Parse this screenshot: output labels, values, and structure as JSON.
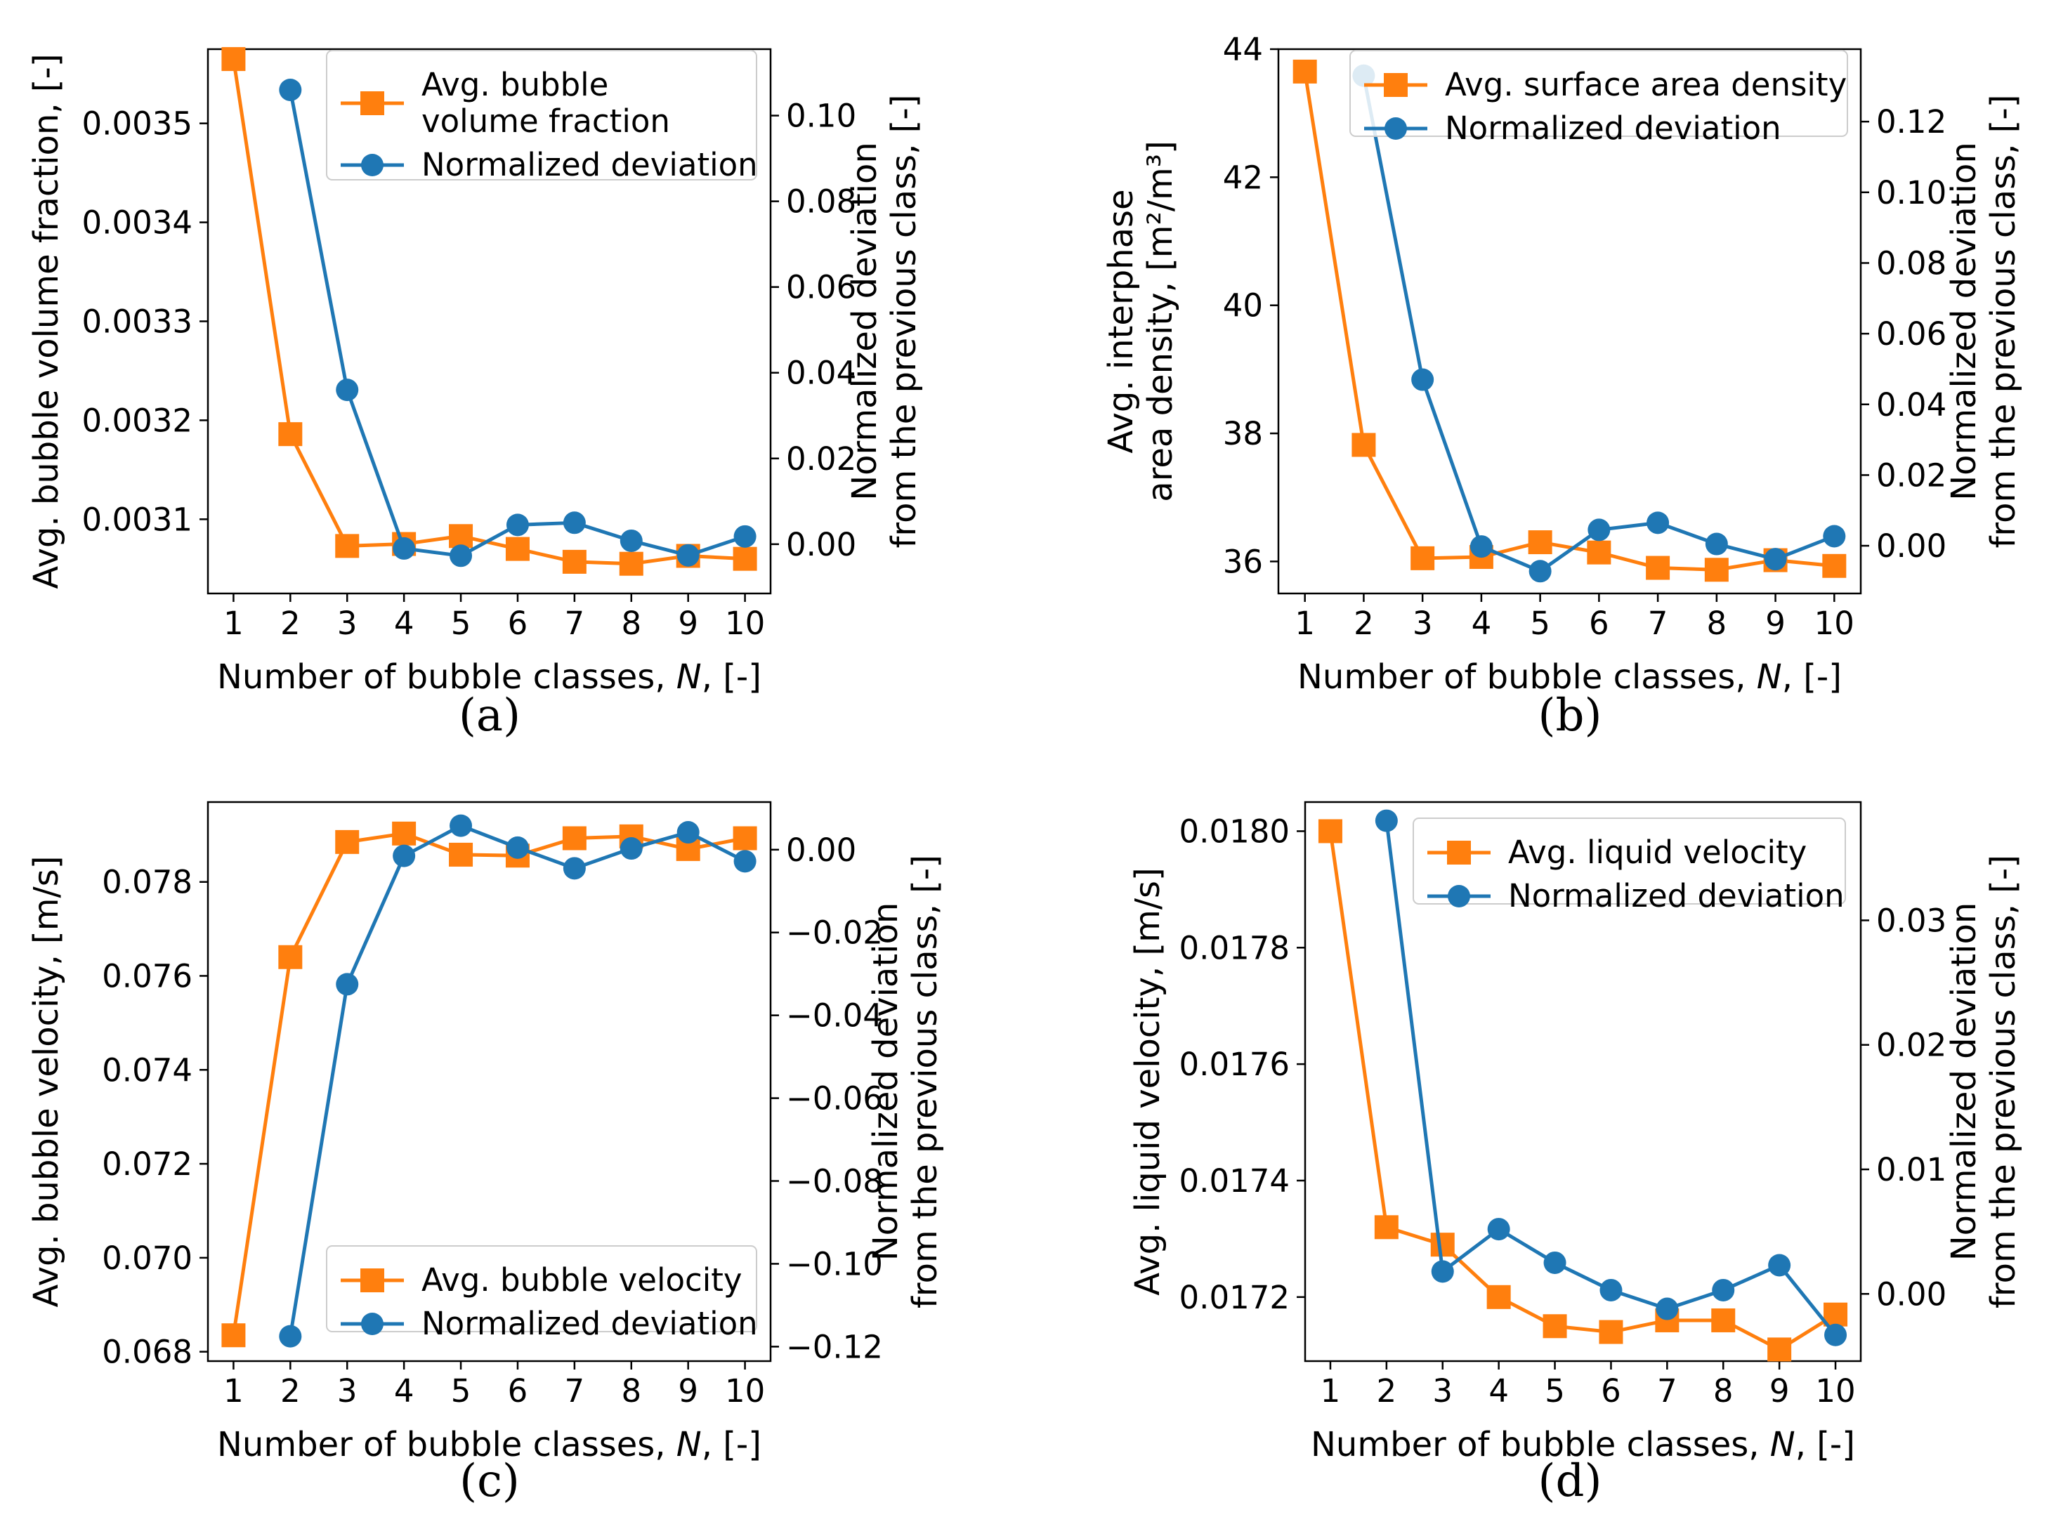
{
  "chart_data": [
    {
      "type": "line",
      "panel": "(a)",
      "categories": [
        "1",
        "2",
        "3",
        "4",
        "5",
        "6",
        "7",
        "8",
        "9",
        "10"
      ],
      "xlabel_pre": "Number of bubble classes, ",
      "xlabel_var": "N",
      "xlabel_post": ", [-]",
      "ylabel": [
        "Avg. bubble volume fraction, [-]"
      ],
      "y2label": [
        "Normalized deviation",
        "from the previous class, [-]"
      ],
      "ylim": [
        0.003025,
        0.003575
      ],
      "y2lim": [
        -0.0115,
        0.1155
      ],
      "yticks": [
        0.0031,
        0.0032,
        0.0033,
        0.0034,
        0.0035
      ],
      "ytick_labels": [
        "0.0031",
        "0.0032",
        "0.0033",
        "0.0034",
        "0.0035"
      ],
      "y2ticks": [
        0.0,
        0.02,
        0.04,
        0.06,
        0.08,
        0.1
      ],
      "y2tick_labels": [
        "0.00",
        "0.02",
        "0.04",
        "0.06",
        "0.08",
        "0.10"
      ],
      "legend_position": "top-right",
      "series": [
        {
          "name": "Avg. bubble\nvolume fraction",
          "axis": "left",
          "marker": "square",
          "color": "#ff7f0e",
          "x": [
            1,
            2,
            3,
            4,
            5,
            6,
            7,
            8,
            9,
            10
          ],
          "values": [
            0.003565,
            0.003186,
            0.003073,
            0.003075,
            0.003083,
            0.00307,
            0.003057,
            0.003055,
            0.003063,
            0.00306
          ]
        },
        {
          "name": "Normalized deviation",
          "axis": "right",
          "marker": "circle",
          "color": "#1f77b4",
          "x": [
            2,
            3,
            4,
            5,
            6,
            7,
            8,
            9,
            10
          ],
          "values": [
            0.106,
            0.036,
            -0.001,
            -0.0027,
            0.0045,
            0.005,
            0.0008,
            -0.0026,
            0.0018
          ]
        }
      ]
    },
    {
      "type": "line",
      "panel": "(b)",
      "categories": [
        "1",
        "2",
        "3",
        "4",
        "5",
        "6",
        "7",
        "8",
        "9",
        "10"
      ],
      "xlabel_pre": "Number of bubble classes, ",
      "xlabel_var": "N",
      "xlabel_post": ", [-]",
      "ylabel": [
        "Avg. interphase",
        "area density, [m²/m³]"
      ],
      "y2label": [
        "Normalized deviation",
        "from the previous class, [-]"
      ],
      "ylim": [
        35.5,
        44.0
      ],
      "y2lim": [
        -0.0135,
        0.1405
      ],
      "yticks": [
        36,
        38,
        40,
        42,
        44
      ],
      "ytick_labels": [
        "36",
        "38",
        "40",
        "42",
        "44"
      ],
      "y2ticks": [
        0.0,
        0.02,
        0.04,
        0.06,
        0.08,
        0.1,
        0.12
      ],
      "y2tick_labels": [
        "0.00",
        "0.02",
        "0.04",
        "0.06",
        "0.08",
        "0.10",
        "0.12"
      ],
      "legend_position": "top-right",
      "series": [
        {
          "name": "Avg. surface area density",
          "axis": "left",
          "marker": "square",
          "color": "#ff7f0e",
          "x": [
            1,
            2,
            3,
            4,
            5,
            6,
            7,
            8,
            9,
            10
          ],
          "values": [
            43.65,
            37.82,
            36.05,
            36.07,
            36.3,
            36.14,
            35.9,
            35.87,
            36.02,
            35.93
          ]
        },
        {
          "name": "Normalized deviation",
          "axis": "right",
          "marker": "circle",
          "color": "#1f77b4",
          "x": [
            2,
            3,
            4,
            5,
            6,
            7,
            8,
            9,
            10
          ],
          "values": [
            0.133,
            0.047,
            -0.0002,
            -0.0072,
            0.0045,
            0.0065,
            0.0005,
            -0.0038,
            0.0027
          ]
        }
      ]
    },
    {
      "type": "line",
      "panel": "(c)",
      "categories": [
        "1",
        "2",
        "3",
        "4",
        "5",
        "6",
        "7",
        "8",
        "9",
        "10"
      ],
      "xlabel_pre": "Number of bubble classes, ",
      "xlabel_var": "N",
      "xlabel_post": ", [-]",
      "ylabel": [
        "Avg. bubble velocity, [m/s]"
      ],
      "y2label": [
        "Normalized deviation",
        "from the previous class, [-]"
      ],
      "ylim": [
        0.0678,
        0.0797
      ],
      "y2lim": [
        -0.1235,
        0.0115
      ],
      "yticks": [
        0.068,
        0.07,
        0.072,
        0.074,
        0.076,
        0.078
      ],
      "ytick_labels": [
        "0.068",
        "0.070",
        "0.072",
        "0.074",
        "0.076",
        "0.078"
      ],
      "y2ticks": [
        -0.12,
        -0.1,
        -0.08,
        -0.06,
        -0.04,
        -0.02,
        0.0
      ],
      "y2tick_labels": [
        "−0.12",
        "−0.10",
        "−0.08",
        "−0.06",
        "−0.04",
        "−0.02",
        "0.00"
      ],
      "legend_position": "bottom-right",
      "series": [
        {
          "name": "Avg. bubble velocity",
          "axis": "left",
          "marker": "square",
          "color": "#ff7f0e",
          "x": [
            1,
            2,
            3,
            4,
            5,
            6,
            7,
            8,
            9,
            10
          ],
          "values": [
            0.06835,
            0.0764,
            0.07885,
            0.07903,
            0.07858,
            0.07856,
            0.07893,
            0.07897,
            0.0787,
            0.07893
          ]
        },
        {
          "name": "Normalized deviation",
          "axis": "right",
          "marker": "circle",
          "color": "#1f77b4",
          "x": [
            2,
            3,
            4,
            5,
            6,
            7,
            8,
            9,
            10
          ],
          "values": [
            -0.1175,
            -0.0325,
            -0.0015,
            0.0058,
            0.0005,
            -0.0045,
            0.0003,
            0.0042,
            -0.0028
          ]
        }
      ]
    },
    {
      "type": "line",
      "panel": "(d)",
      "categories": [
        "1",
        "2",
        "3",
        "4",
        "5",
        "6",
        "7",
        "8",
        "9",
        "10"
      ],
      "xlabel_pre": "Number of bubble classes, ",
      "xlabel_var": "N",
      "xlabel_post": ", [-]",
      "ylabel": [
        "Avg. liquid velocity, [m/s]"
      ],
      "y2label": [
        "Normalized deviation",
        "from the previous class, [-]"
      ],
      "ylim": [
        0.01709,
        0.01805
      ],
      "y2lim": [
        -0.0054,
        0.0395
      ],
      "yticks": [
        0.0172,
        0.0174,
        0.0176,
        0.0178,
        0.018
      ],
      "ytick_labels": [
        "0.0172",
        "0.0174",
        "0.0176",
        "0.0178",
        "0.0180"
      ],
      "y2ticks": [
        0.0,
        0.01,
        0.02,
        0.03
      ],
      "y2tick_labels": [
        "0.00",
        "0.01",
        "0.02",
        "0.03"
      ],
      "legend_position": "top-right",
      "series": [
        {
          "name": "Avg. liquid velocity",
          "axis": "left",
          "marker": "square",
          "color": "#ff7f0e",
          "x": [
            1,
            2,
            3,
            4,
            5,
            6,
            7,
            8,
            9,
            10
          ],
          "values": [
            0.018,
            0.01732,
            0.01729,
            0.0172,
            0.01715,
            0.01714,
            0.01716,
            0.01716,
            0.01711,
            0.01717
          ]
        },
        {
          "name": "Normalized deviation",
          "axis": "right",
          "marker": "circle",
          "color": "#1f77b4",
          "x": [
            2,
            3,
            4,
            5,
            6,
            7,
            8,
            9,
            10
          ],
          "values": [
            0.038,
            0.0018,
            0.0052,
            0.0025,
            0.0003,
            -0.0012,
            0.0003,
            0.0023,
            -0.0033
          ]
        }
      ]
    }
  ]
}
